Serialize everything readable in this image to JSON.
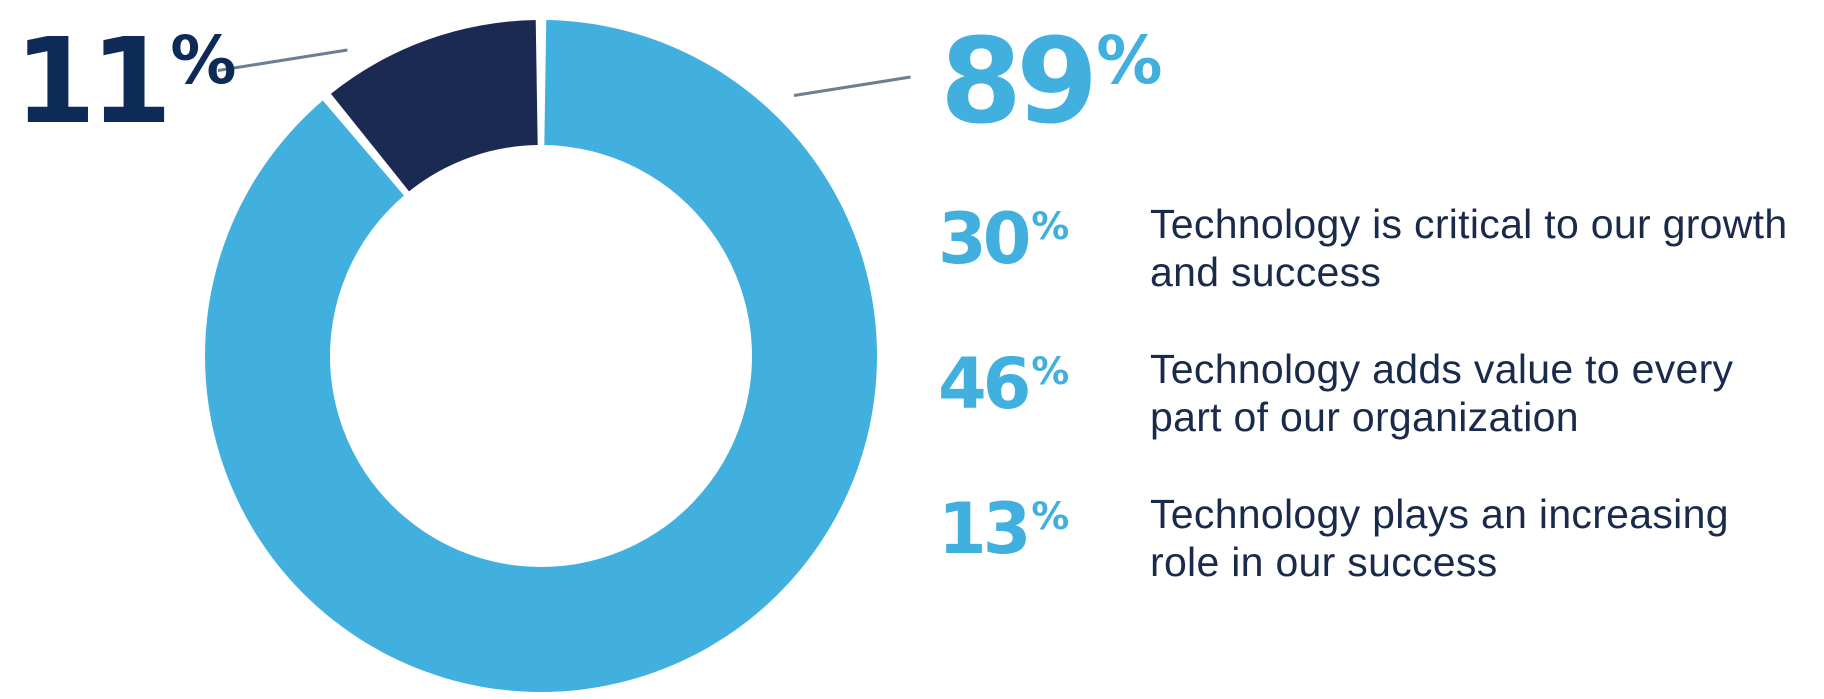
{
  "colors": {
    "primary": "#41b0df",
    "secondary": "#1b2a52",
    "minor_label": "#0e2a56",
    "text": "#1a2a4a"
  },
  "chart_data": {
    "type": "pie",
    "style": "donut",
    "slices": [
      {
        "label": "11%",
        "value": 11,
        "color": "#1b2a52"
      },
      {
        "label": "89%",
        "value": 89,
        "color": "#41b0df"
      }
    ],
    "callouts": {
      "minor": {
        "number": "11",
        "unit": "%"
      },
      "major": {
        "number": "89",
        "unit": "%"
      }
    },
    "breakdown": [
      {
        "number": "30",
        "unit": "%",
        "text": "Technology is critical to our growth and success"
      },
      {
        "number": "46",
        "unit": "%",
        "text": "Technology adds value to every part of our organization"
      },
      {
        "number": "13",
        "unit": "%",
        "text": "Technology plays an increasing role in our success"
      }
    ]
  }
}
